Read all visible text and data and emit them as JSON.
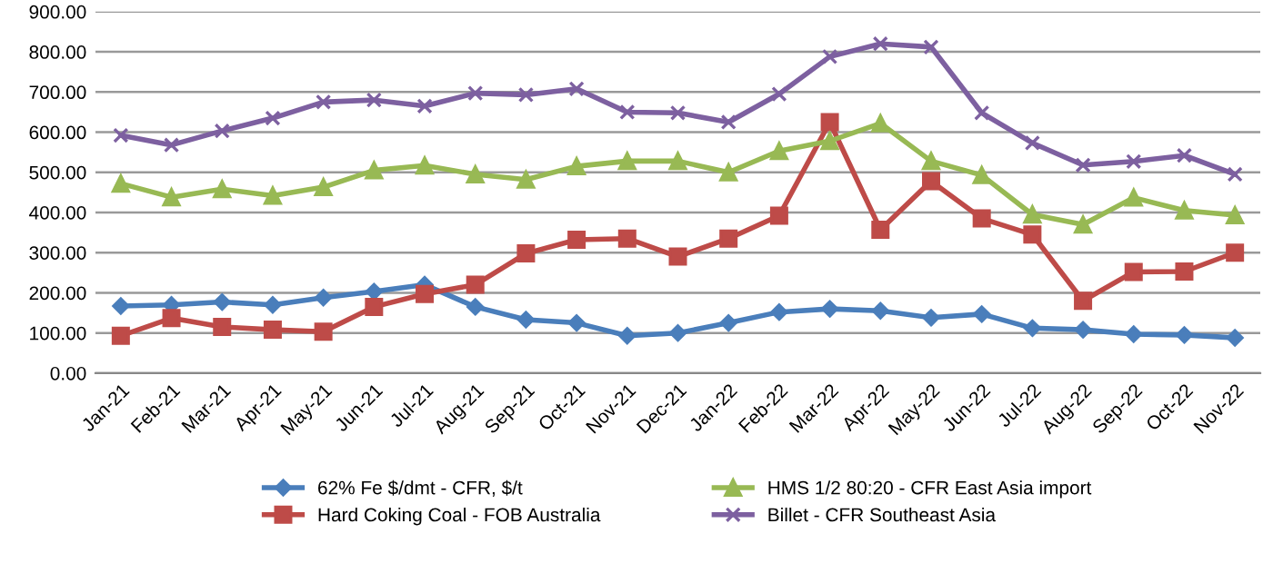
{
  "chart_data": {
    "type": "line",
    "categories": [
      "Jan-21",
      "Feb-21",
      "Mar-21",
      "Apr-21",
      "May-21",
      "Jun-21",
      "Jul-21",
      "Aug-21",
      "Sep-21",
      "Oct-21",
      "Nov-21",
      "Dec-21",
      "Jan-22",
      "Feb-22",
      "Mar-22",
      "Apr-22",
      "May-22",
      "Jun-22",
      "Jul-22",
      "Aug-22",
      "Sep-22",
      "Oct-22",
      "Nov-22"
    ],
    "series": [
      {
        "name": "62% Fe $/dmt - CFR, $/t",
        "color": "#4a7ebb",
        "marker": "diamond",
        "values": [
          167,
          170,
          177,
          170,
          188,
          203,
          220,
          165,
          133,
          125,
          93,
          100,
          125,
          152,
          160,
          155,
          138,
          147,
          112,
          108,
          97,
          95,
          88
        ]
      },
      {
        "name": "Hard Coking Coal - FOB Australia",
        "color": "#be4b48",
        "marker": "square",
        "values": [
          93,
          137,
          115,
          108,
          103,
          165,
          197,
          220,
          298,
          332,
          335,
          290,
          335,
          392,
          625,
          357,
          478,
          385,
          345,
          180,
          252,
          253,
          300
        ]
      },
      {
        "name": "HMS 1/2 80:20 - CFR East Asia import",
        "color": "#98b954",
        "marker": "triangle",
        "values": [
          472,
          438,
          458,
          442,
          463,
          505,
          517,
          495,
          482,
          515,
          528,
          528,
          500,
          553,
          578,
          622,
          528,
          493,
          395,
          370,
          437,
          405,
          393
        ]
      },
      {
        "name": "Billet - CFR Southeast Asia",
        "color": "#7d60a0",
        "marker": "cross",
        "values": [
          592,
          568,
          603,
          635,
          675,
          680,
          665,
          697,
          693,
          708,
          650,
          648,
          625,
          695,
          788,
          820,
          812,
          648,
          573,
          518,
          527,
          542,
          495
        ]
      }
    ],
    "ylim": [
      0,
      900
    ],
    "yticks": [
      {
        "value": 0,
        "label": "0.00"
      },
      {
        "value": 100,
        "label": "100.00"
      },
      {
        "value": 200,
        "label": "200.00"
      },
      {
        "value": 300,
        "label": "300.00"
      },
      {
        "value": 400,
        "label": "400.00"
      },
      {
        "value": 500,
        "label": "500.00"
      },
      {
        "value": 600,
        "label": "600.00"
      },
      {
        "value": 700,
        "label": "700.00"
      },
      {
        "value": 800,
        "label": "800.00"
      },
      {
        "value": 900,
        "label": "900.00"
      }
    ],
    "grid": "y",
    "legend": "bottom",
    "line_style": "solid"
  }
}
